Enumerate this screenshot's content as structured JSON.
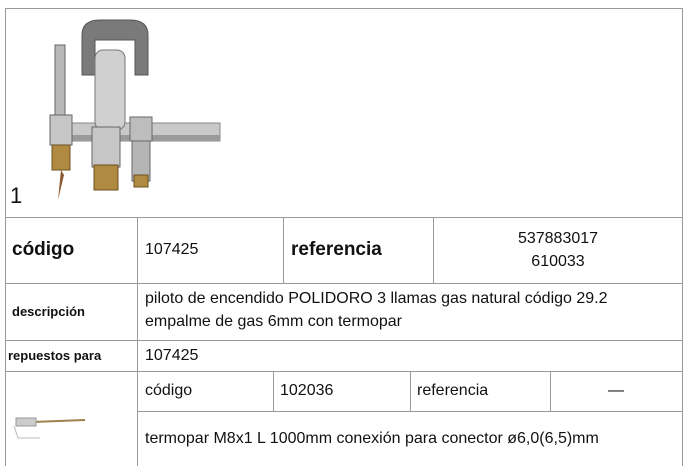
{
  "image_label": "1",
  "product": {
    "code_label": "código",
    "code": "107425",
    "reference_label": "referencia",
    "references": [
      "537883017",
      "610033"
    ],
    "description_label": "descripción",
    "description": [
      "piloto de encendido  POLIDORO 3 llamas gas natural código  29.2",
      "empalme de gas 6mm con termopar"
    ],
    "spares_label": "repuestos para",
    "spares": "107425"
  },
  "part": {
    "code_label": "código",
    "code": "102036",
    "reference_label": "referencia",
    "reference": "—",
    "description": "termopar  M8x1 L 1000mm conexión para conector ø6,0(6,5)mm"
  }
}
